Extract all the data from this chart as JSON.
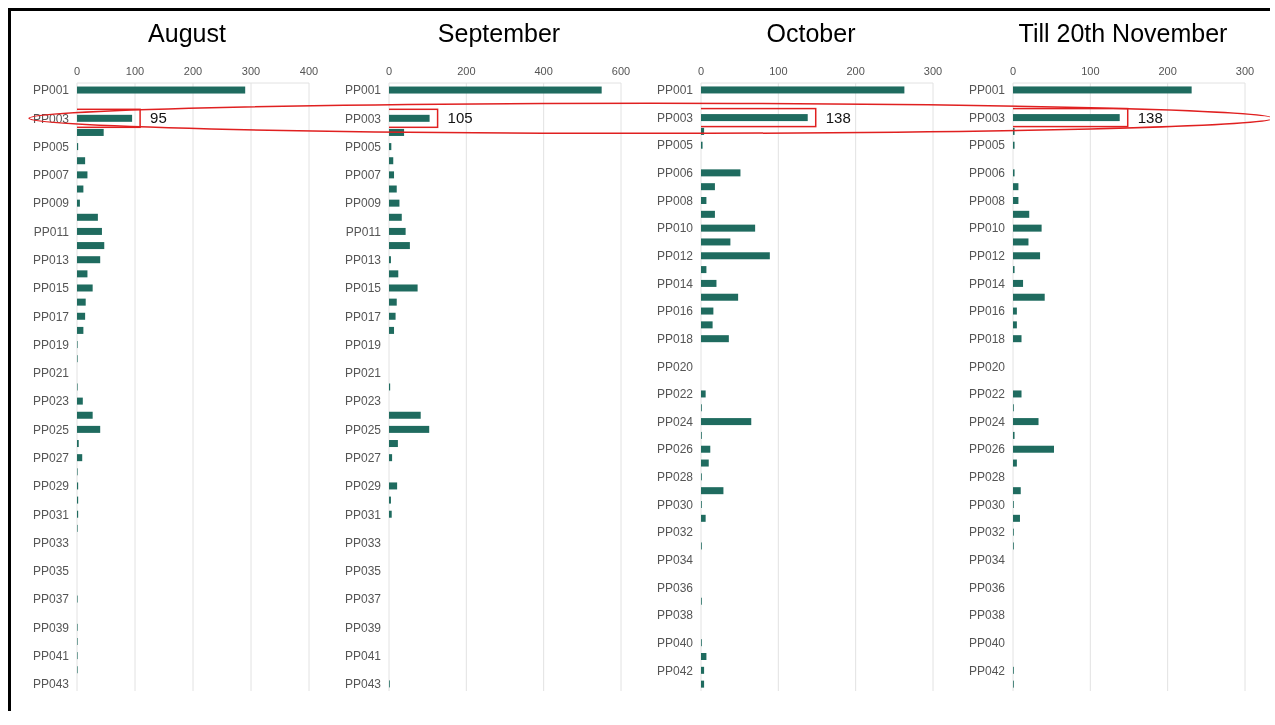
{
  "chart_data": [
    {
      "type": "bar",
      "orientation": "horizontal",
      "title": "August",
      "color": "#1f6b5f",
      "grid": "x",
      "xlim": [
        0,
        400
      ],
      "xticks": [
        0,
        100,
        200,
        300,
        400
      ],
      "categories": [
        "PP001",
        null,
        "PP003",
        null,
        "PP005",
        null,
        "PP007",
        null,
        "PP009",
        null,
        "PP011",
        null,
        "PP013",
        null,
        "PP015",
        null,
        "PP017",
        null,
        "PP019",
        null,
        "PP021",
        null,
        "PP023",
        null,
        "PP025",
        null,
        "PP027",
        null,
        "PP029",
        null,
        "PP031",
        null,
        "PP033",
        null,
        "PP035",
        null,
        "PP037",
        null,
        "PP039",
        null,
        "PP041",
        null,
        "PP043"
      ],
      "values": [
        290,
        0,
        95,
        46,
        2,
        14,
        18,
        11,
        5,
        36,
        43,
        47,
        40,
        18,
        27,
        15,
        14,
        11,
        1,
        1,
        0,
        1,
        10,
        27,
        40,
        3,
        9,
        1,
        2,
        2,
        2,
        1,
        0,
        0,
        0,
        0,
        1,
        0,
        1,
        1,
        1,
        1,
        0
      ],
      "value_labels": [
        null,
        null,
        "95",
        null,
        null,
        null,
        null,
        null,
        null,
        null,
        null,
        null,
        null,
        null,
        null,
        null,
        null,
        null,
        null,
        null,
        null,
        null,
        null,
        null,
        null,
        null,
        null,
        null,
        null,
        null,
        null,
        null,
        null,
        null,
        null,
        null,
        null,
        null,
        null,
        null,
        null,
        null,
        null
      ]
    },
    {
      "type": "bar",
      "orientation": "horizontal",
      "title": "September",
      "color": "#1f6b5f",
      "grid": "x",
      "xlim": [
        0,
        600
      ],
      "xticks": [
        0,
        200,
        400,
        600
      ],
      "categories": [
        "PP001",
        null,
        "PP003",
        null,
        "PP005",
        null,
        "PP007",
        null,
        "PP009",
        null,
        "PP011",
        null,
        "PP013",
        null,
        "PP015",
        null,
        "PP017",
        null,
        "PP019",
        null,
        "PP021",
        null,
        "PP023",
        null,
        "PP025",
        null,
        "PP027",
        null,
        "PP029",
        null,
        "PP031",
        null,
        "PP033",
        null,
        "PP035",
        null,
        "PP037",
        null,
        "PP039",
        null,
        "PP041",
        null,
        "PP043"
      ],
      "values": [
        550,
        0,
        105,
        39,
        6,
        11,
        13,
        20,
        27,
        33,
        43,
        54,
        5,
        24,
        74,
        20,
        17,
        13,
        0,
        0,
        0,
        3,
        null,
        82,
        104,
        23,
        8,
        null,
        21,
        5,
        7,
        0,
        0,
        0,
        0,
        0,
        0,
        0,
        0,
        0,
        null,
        null,
        2
      ],
      "value_labels": [
        null,
        null,
        "105",
        null,
        null,
        null,
        null,
        null,
        null,
        null,
        null,
        null,
        null,
        null,
        null,
        null,
        null,
        null,
        null,
        null,
        null,
        null,
        null,
        null,
        null,
        null,
        null,
        null,
        null,
        null,
        null,
        null,
        null,
        null,
        null,
        null,
        null,
        null,
        null,
        null,
        null,
        null,
        null
      ]
    },
    {
      "type": "bar",
      "orientation": "horizontal",
      "title": "October",
      "color": "#1f6b5f",
      "grid": "x",
      "xlim": [
        0,
        300
      ],
      "xticks": [
        0,
        100,
        200,
        300
      ],
      "categories": [
        "PP001",
        null,
        "PP003",
        null,
        "PP005",
        null,
        "PP006",
        null,
        "PP008",
        null,
        "PP010",
        null,
        "PP012",
        null,
        "PP014",
        null,
        "PP016",
        null,
        "PP018",
        null,
        "PP020",
        null,
        "PP022",
        null,
        "PP024",
        null,
        "PP026",
        null,
        "PP028",
        null,
        "PP030",
        null,
        "PP032",
        null,
        "PP034",
        null,
        "PP036",
        null,
        "PP038",
        null,
        "PP040",
        null,
        "PP042",
        null
      ],
      "values": [
        263,
        0,
        138,
        4,
        2,
        0,
        51,
        18,
        7,
        18,
        70,
        38,
        89,
        7,
        20,
        48,
        16,
        15,
        36,
        0,
        0,
        0,
        6,
        1,
        65,
        1,
        12,
        10,
        1,
        29,
        1,
        6,
        0,
        1,
        0,
        0,
        0,
        1,
        0,
        0,
        1,
        7,
        4,
        4
      ],
      "value_labels": [
        null,
        null,
        "138",
        null,
        null,
        null,
        null,
        null,
        null,
        null,
        null,
        null,
        null,
        null,
        null,
        null,
        null,
        null,
        null,
        null,
        null,
        null,
        null,
        null,
        null,
        null,
        null,
        null,
        null,
        null,
        null,
        null,
        null,
        null,
        null,
        null,
        null,
        null,
        null,
        null,
        null,
        null,
        null,
        null
      ]
    },
    {
      "type": "bar",
      "orientation": "horizontal",
      "title": "Till 20th November",
      "color": "#1f6b5f",
      "grid": "x",
      "xlim": [
        0,
        300
      ],
      "xticks": [
        0,
        100,
        200,
        300
      ],
      "categories": [
        "PP001",
        null,
        "PP003",
        null,
        "PP005",
        null,
        "PP006",
        null,
        "PP008",
        null,
        "PP010",
        null,
        "PP012",
        null,
        "PP014",
        null,
        "PP016",
        null,
        "PP018",
        null,
        "PP020",
        null,
        "PP022",
        null,
        "PP024",
        null,
        "PP026",
        null,
        "PP028",
        null,
        "PP030",
        null,
        "PP032",
        null,
        "PP034",
        null,
        "PP036",
        null,
        "PP038",
        null,
        "PP040",
        null,
        "PP042",
        null
      ],
      "values": [
        231,
        0,
        138,
        2,
        2,
        0,
        2,
        7,
        7,
        21,
        37,
        20,
        35,
        2,
        13,
        41,
        5,
        5,
        11,
        0,
        0,
        0,
        11,
        1,
        33,
        2,
        53,
        5,
        0,
        10,
        1,
        9,
        1,
        1,
        0,
        0,
        0,
        0,
        0,
        0,
        0,
        0,
        1,
        1
      ],
      "value_labels": [
        null,
        null,
        "138",
        null,
        null,
        null,
        null,
        null,
        null,
        null,
        null,
        null,
        null,
        null,
        null,
        null,
        null,
        null,
        null,
        null,
        null,
        null,
        null,
        null,
        null,
        null,
        null,
        null,
        null,
        null,
        null,
        null,
        null,
        null,
        null,
        null,
        null,
        null,
        null,
        null,
        null,
        null,
        null,
        null
      ]
    }
  ]
}
